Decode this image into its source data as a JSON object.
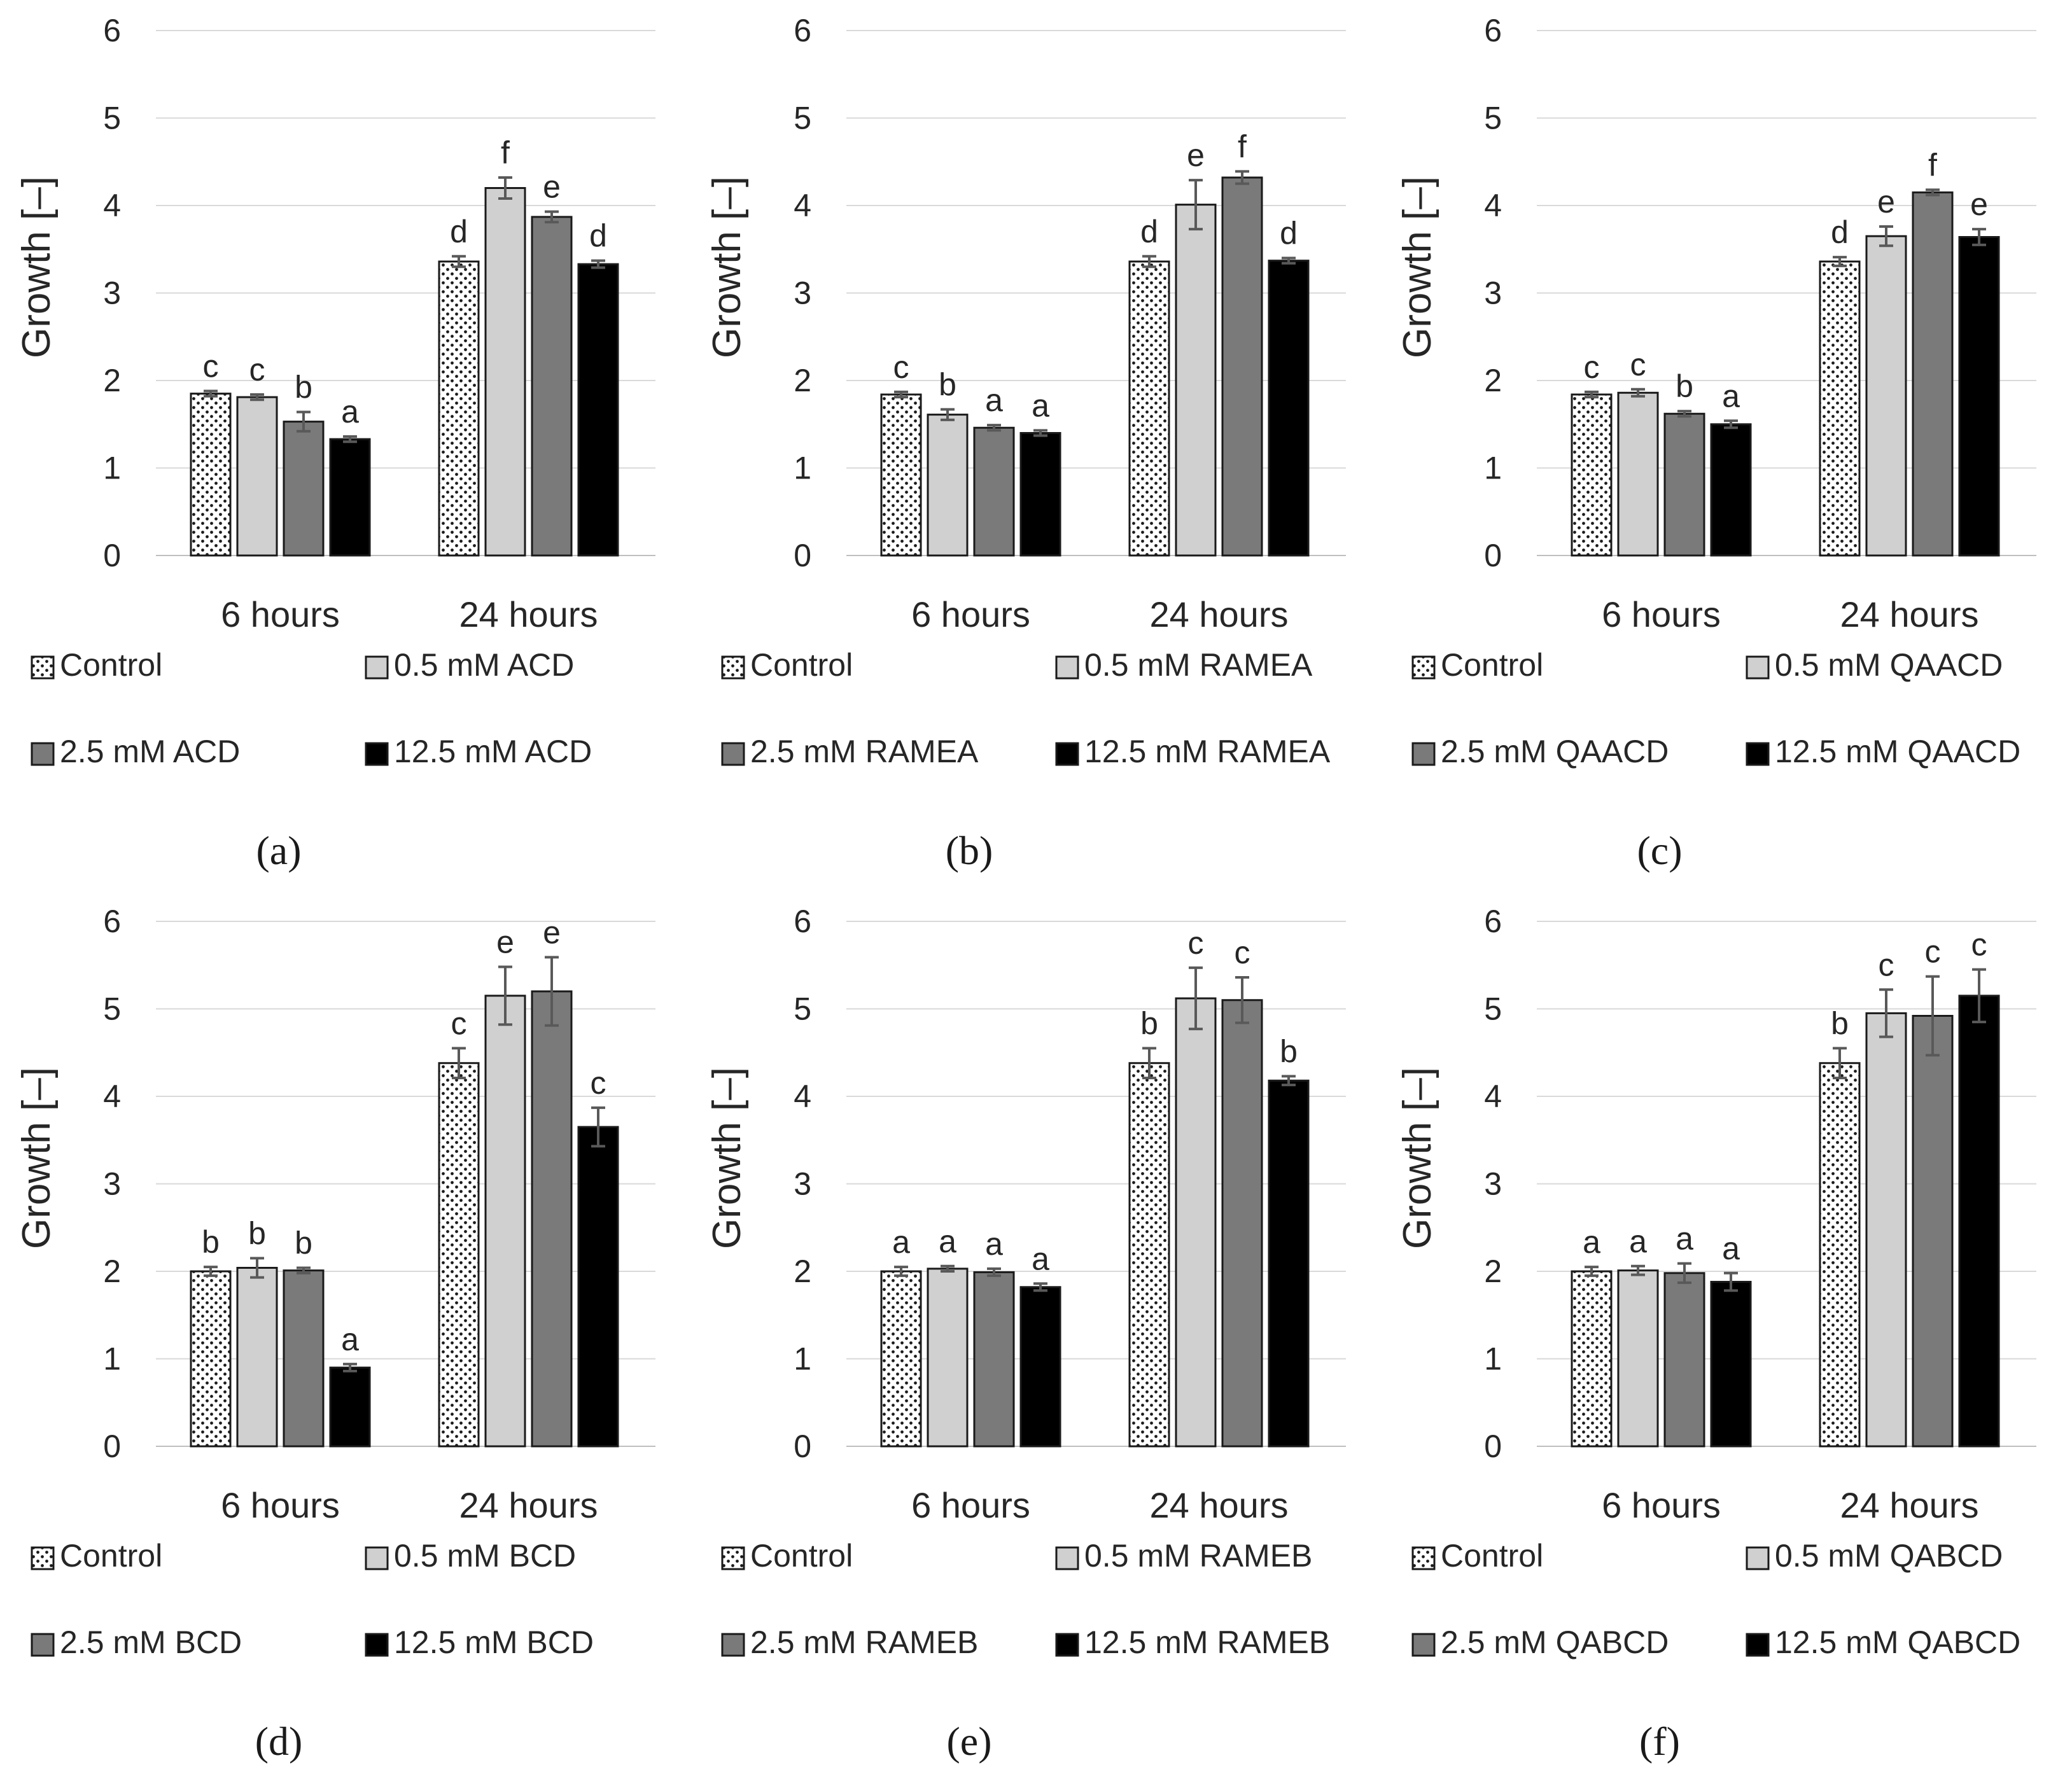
{
  "chart_data": [
    {
      "type": "bar",
      "panel_label": "(a)",
      "categories": [
        "6 hours",
        "24 hours"
      ],
      "ylabel": "Growth [–]",
      "ylim": [
        0,
        6
      ],
      "yticks": [
        "0",
        "1",
        "2",
        "3",
        "4",
        "5",
        "6"
      ],
      "grid": true,
      "series": [
        {
          "name": "Control",
          "values": [
            1.85,
            3.36
          ],
          "errors": [
            0.03,
            0.06
          ],
          "letters": [
            "c",
            "d"
          ]
        },
        {
          "name": "0.5 mM ACD",
          "values": [
            1.81,
            4.2
          ],
          "errors": [
            0.03,
            0.12
          ],
          "letters": [
            "c",
            "f"
          ]
        },
        {
          "name": "2.5 mM ACD",
          "values": [
            1.53,
            3.87
          ],
          "errors": [
            0.11,
            0.06
          ],
          "letters": [
            "b",
            "e"
          ]
        },
        {
          "name": "12.5 mM ACD",
          "values": [
            1.33,
            3.33
          ],
          "errors": [
            0.03,
            0.04
          ],
          "letters": [
            "a",
            "d"
          ]
        }
      ]
    },
    {
      "type": "bar",
      "panel_label": "(b)",
      "categories": [
        "6 hours",
        "24 hours"
      ],
      "ylabel": "Growth [–]",
      "ylim": [
        0,
        6
      ],
      "yticks": [
        "0",
        "1",
        "2",
        "3",
        "4",
        "5",
        "6"
      ],
      "grid": true,
      "series": [
        {
          "name": "Control",
          "values": [
            1.84,
            3.36
          ],
          "errors": [
            0.03,
            0.06
          ],
          "letters": [
            "c",
            "d"
          ]
        },
        {
          "name": "0.5 mM RAMEA",
          "values": [
            1.61,
            4.01
          ],
          "errors": [
            0.06,
            0.28
          ],
          "letters": [
            "b",
            "e"
          ]
        },
        {
          "name": "2.5 mM RAMEA",
          "values": [
            1.46,
            4.32
          ],
          "errors": [
            0.03,
            0.07
          ],
          "letters": [
            "a",
            "f"
          ]
        },
        {
          "name": "12.5 mM RAMEA",
          "values": [
            1.4,
            3.37
          ],
          "errors": [
            0.03,
            0.03
          ],
          "letters": [
            "a",
            "d"
          ]
        }
      ]
    },
    {
      "type": "bar",
      "panel_label": "(c)",
      "categories": [
        "6 hours",
        "24 hours"
      ],
      "ylabel": "Growth [–]",
      "ylim": [
        0,
        6
      ],
      "yticks": [
        "0",
        "1",
        "2",
        "3",
        "4",
        "5",
        "6"
      ],
      "grid": true,
      "series": [
        {
          "name": "Control",
          "values": [
            1.84,
            3.36
          ],
          "errors": [
            0.03,
            0.05
          ],
          "letters": [
            "c",
            "d"
          ]
        },
        {
          "name": "0.5 mM QAACD",
          "values": [
            1.86,
            3.65
          ],
          "errors": [
            0.04,
            0.11
          ],
          "letters": [
            "c",
            "e"
          ]
        },
        {
          "name": "2.5 mM QAACD",
          "values": [
            1.62,
            4.15
          ],
          "errors": [
            0.03,
            0.03
          ],
          "letters": [
            "b",
            "f"
          ]
        },
        {
          "name": "12.5 mM QAACD",
          "values": [
            1.5,
            3.64
          ],
          "errors": [
            0.04,
            0.09
          ],
          "letters": [
            "a",
            "e"
          ]
        }
      ]
    },
    {
      "type": "bar",
      "panel_label": "(d)",
      "categories": [
        "6 hours",
        "24 hours"
      ],
      "ylabel": "Growth [–]",
      "ylim": [
        0,
        6
      ],
      "yticks": [
        "0",
        "1",
        "2",
        "3",
        "4",
        "5",
        "6"
      ],
      "grid": true,
      "series": [
        {
          "name": "Control",
          "values": [
            2.0,
            4.38
          ],
          "errors": [
            0.05,
            0.17
          ],
          "letters": [
            "b",
            "c"
          ]
        },
        {
          "name": "0.5 mM BCD",
          "values": [
            2.04,
            5.15
          ],
          "errors": [
            0.11,
            0.33
          ],
          "letters": [
            "b",
            "e"
          ]
        },
        {
          "name": "2.5 mM BCD",
          "values": [
            2.01,
            5.2
          ],
          "errors": [
            0.03,
            0.39
          ],
          "letters": [
            "b",
            "e"
          ]
        },
        {
          "name": "12.5 mM BCD",
          "values": [
            0.9,
            3.65
          ],
          "errors": [
            0.04,
            0.22
          ],
          "letters": [
            "a",
            "c"
          ]
        }
      ]
    },
    {
      "type": "bar",
      "panel_label": "(e)",
      "categories": [
        "6 hours",
        "24 hours"
      ],
      "ylabel": "Growth [–]",
      "ylim": [
        0,
        6
      ],
      "yticks": [
        "0",
        "1",
        "2",
        "3",
        "4",
        "5",
        "6"
      ],
      "grid": true,
      "series": [
        {
          "name": "Control",
          "values": [
            2.0,
            4.38
          ],
          "errors": [
            0.05,
            0.17
          ],
          "letters": [
            "a",
            "b"
          ]
        },
        {
          "name": "0.5 mM RAMEB",
          "values": [
            2.03,
            5.12
          ],
          "errors": [
            0.03,
            0.35
          ],
          "letters": [
            "a",
            "c"
          ]
        },
        {
          "name": "2.5 mM RAMEB",
          "values": [
            1.99,
            5.1
          ],
          "errors": [
            0.04,
            0.26
          ],
          "letters": [
            "a",
            "c"
          ]
        },
        {
          "name": "12.5 mM RAMEB",
          "values": [
            1.82,
            4.18
          ],
          "errors": [
            0.04,
            0.05
          ],
          "letters": [
            "a",
            "b"
          ]
        }
      ]
    },
    {
      "type": "bar",
      "panel_label": "(f)",
      "categories": [
        "6 hours",
        "24 hours"
      ],
      "ylabel": "Growth [–]",
      "ylim": [
        0,
        6
      ],
      "yticks": [
        "0",
        "1",
        "2",
        "3",
        "4",
        "5",
        "6"
      ],
      "grid": true,
      "series": [
        {
          "name": "Control",
          "values": [
            2.0,
            4.38
          ],
          "errors": [
            0.05,
            0.17
          ],
          "letters": [
            "a",
            "b"
          ]
        },
        {
          "name": "0.5 mM QABCD",
          "values": [
            2.01,
            4.95
          ],
          "errors": [
            0.05,
            0.27
          ],
          "letters": [
            "a",
            "c"
          ]
        },
        {
          "name": "2.5 mM QABCD",
          "values": [
            1.98,
            4.92
          ],
          "errors": [
            0.11,
            0.45
          ],
          "letters": [
            "a",
            "c"
          ]
        },
        {
          "name": "12.5 mM QABCD",
          "values": [
            1.88,
            5.15
          ],
          "errors": [
            0.1,
            0.3
          ],
          "letters": [
            "a",
            "c"
          ]
        }
      ]
    }
  ],
  "colors": {
    "control_fill": "#ffffff",
    "control_dots": "#1a1a1a",
    "low_fill": "#d0d0d0",
    "mid_fill": "#7a7a7a",
    "high_fill": "#000000",
    "bar_outline": "#1a1a1a",
    "error_bar": "#595959",
    "grid": "#d9d9d9",
    "text": "#262626"
  }
}
